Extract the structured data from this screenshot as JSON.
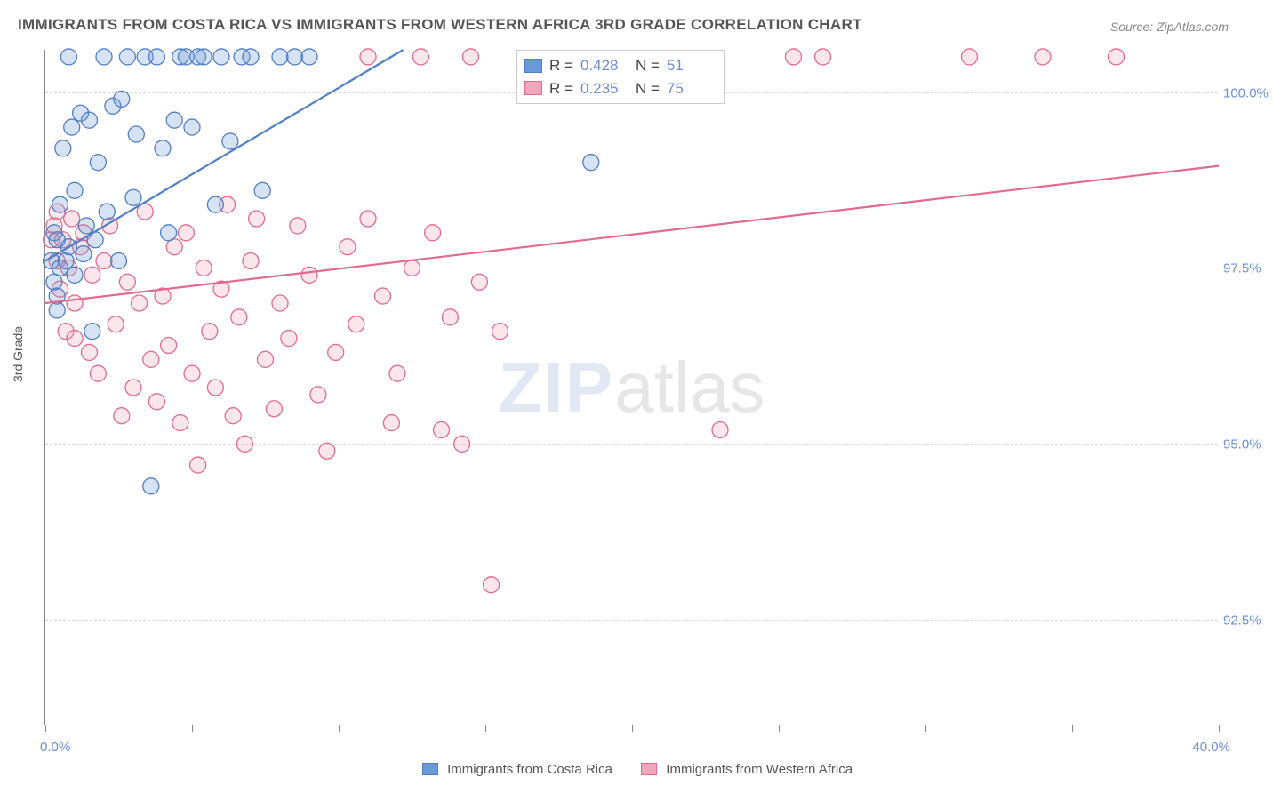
{
  "title": "IMMIGRANTS FROM COSTA RICA VS IMMIGRANTS FROM WESTERN AFRICA 3RD GRADE CORRELATION CHART",
  "source": "Source: ZipAtlas.com",
  "ylabel": "3rd Grade",
  "watermark": {
    "zip": "ZIP",
    "atlas": "atlas"
  },
  "chart": {
    "type": "scatter",
    "xlim": [
      0,
      40
    ],
    "ylim": [
      91.0,
      100.6
    ],
    "xticks": [
      0,
      5,
      10,
      15,
      20,
      25,
      30,
      35,
      40
    ],
    "xlabel_start": "0.0%",
    "xlabel_end": "40.0%",
    "yticks": [
      {
        "v": 100.0,
        "label": "100.0%"
      },
      {
        "v": 97.5,
        "label": "97.5%"
      },
      {
        "v": 95.0,
        "label": "95.0%"
      },
      {
        "v": 92.5,
        "label": "92.5%"
      }
    ],
    "background_color": "#ffffff",
    "grid_color": "#d8d8d8",
    "marker_radius": 9,
    "marker_fill_opacity": 0.28,
    "line_width": 2.2,
    "series": [
      {
        "name": "Immigrants from Costa Rica",
        "color": "#6a99d8",
        "stroke": "#4f7fc4",
        "R": "0.428",
        "N": "51",
        "trend": {
          "x1": 0,
          "y1": 97.6,
          "x2": 12.2,
          "y2": 100.6
        },
        "points": [
          [
            0.2,
            97.6
          ],
          [
            0.3,
            97.3
          ],
          [
            0.3,
            98.0
          ],
          [
            0.4,
            97.1
          ],
          [
            0.4,
            97.9
          ],
          [
            0.4,
            96.9
          ],
          [
            0.5,
            98.4
          ],
          [
            0.5,
            97.5
          ],
          [
            0.6,
            99.2
          ],
          [
            0.7,
            97.6
          ],
          [
            0.8,
            100.5
          ],
          [
            0.8,
            97.8
          ],
          [
            0.9,
            99.5
          ],
          [
            1.0,
            97.4
          ],
          [
            1.0,
            98.6
          ],
          [
            1.2,
            99.7
          ],
          [
            1.3,
            97.7
          ],
          [
            1.4,
            98.1
          ],
          [
            1.5,
            99.6
          ],
          [
            1.6,
            96.6
          ],
          [
            1.7,
            97.9
          ],
          [
            1.8,
            99.0
          ],
          [
            2.0,
            100.5
          ],
          [
            2.1,
            98.3
          ],
          [
            2.3,
            99.8
          ],
          [
            2.5,
            97.6
          ],
          [
            2.6,
            99.9
          ],
          [
            2.8,
            100.5
          ],
          [
            3.0,
            98.5
          ],
          [
            3.1,
            99.4
          ],
          [
            3.4,
            100.5
          ],
          [
            3.6,
            94.4
          ],
          [
            3.8,
            100.5
          ],
          [
            4.0,
            99.2
          ],
          [
            4.2,
            98.0
          ],
          [
            4.4,
            99.6
          ],
          [
            4.6,
            100.5
          ],
          [
            4.8,
            100.5
          ],
          [
            5.0,
            99.5
          ],
          [
            5.2,
            100.5
          ],
          [
            5.4,
            100.5
          ],
          [
            5.8,
            98.4
          ],
          [
            6.0,
            100.5
          ],
          [
            6.3,
            99.3
          ],
          [
            6.7,
            100.5
          ],
          [
            7.0,
            100.5
          ],
          [
            7.4,
            98.6
          ],
          [
            8.0,
            100.5
          ],
          [
            8.5,
            100.5
          ],
          [
            9.0,
            100.5
          ],
          [
            18.6,
            99.0
          ]
        ]
      },
      {
        "name": "Immigrants from Western Africa",
        "color": "#f2a6bb",
        "stroke": "#e26b8d",
        "R": "0.235",
        "N": "75",
        "trend": {
          "x1": 0,
          "y1": 97.0,
          "x2": 40,
          "y2": 98.95
        },
        "points": [
          [
            0.2,
            97.9
          ],
          [
            0.3,
            98.1
          ],
          [
            0.4,
            97.6
          ],
          [
            0.4,
            98.3
          ],
          [
            0.5,
            97.2
          ],
          [
            0.6,
            97.9
          ],
          [
            0.7,
            96.6
          ],
          [
            0.8,
            97.5
          ],
          [
            0.9,
            98.2
          ],
          [
            1.0,
            97.0
          ],
          [
            1.0,
            96.5
          ],
          [
            1.2,
            97.8
          ],
          [
            1.3,
            98.0
          ],
          [
            1.5,
            96.3
          ],
          [
            1.6,
            97.4
          ],
          [
            1.8,
            96.0
          ],
          [
            2.0,
            97.6
          ],
          [
            2.2,
            98.1
          ],
          [
            2.4,
            96.7
          ],
          [
            2.6,
            95.4
          ],
          [
            2.8,
            97.3
          ],
          [
            3.0,
            95.8
          ],
          [
            3.2,
            97.0
          ],
          [
            3.4,
            98.3
          ],
          [
            3.6,
            96.2
          ],
          [
            3.8,
            95.6
          ],
          [
            4.0,
            97.1
          ],
          [
            4.2,
            96.4
          ],
          [
            4.4,
            97.8
          ],
          [
            4.6,
            95.3
          ],
          [
            4.8,
            98.0
          ],
          [
            5.0,
            96.0
          ],
          [
            5.2,
            94.7
          ],
          [
            5.4,
            97.5
          ],
          [
            5.6,
            96.6
          ],
          [
            5.8,
            95.8
          ],
          [
            6.0,
            97.2
          ],
          [
            6.2,
            98.4
          ],
          [
            6.4,
            95.4
          ],
          [
            6.6,
            96.8
          ],
          [
            6.8,
            95.0
          ],
          [
            7.0,
            97.6
          ],
          [
            7.2,
            98.2
          ],
          [
            7.5,
            96.2
          ],
          [
            7.8,
            95.5
          ],
          [
            8.0,
            97.0
          ],
          [
            8.3,
            96.5
          ],
          [
            8.6,
            98.1
          ],
          [
            9.0,
            97.4
          ],
          [
            9.3,
            95.7
          ],
          [
            9.6,
            94.9
          ],
          [
            9.9,
            96.3
          ],
          [
            10.3,
            97.8
          ],
          [
            10.6,
            96.7
          ],
          [
            11.0,
            100.5
          ],
          [
            11.0,
            98.2
          ],
          [
            11.5,
            97.1
          ],
          [
            11.8,
            95.3
          ],
          [
            12.0,
            96.0
          ],
          [
            12.5,
            97.5
          ],
          [
            12.8,
            100.5
          ],
          [
            13.2,
            98.0
          ],
          [
            13.5,
            95.2
          ],
          [
            13.8,
            96.8
          ],
          [
            14.2,
            95.0
          ],
          [
            14.5,
            100.5
          ],
          [
            14.8,
            97.3
          ],
          [
            15.2,
            93.0
          ],
          [
            15.5,
            96.6
          ],
          [
            23.0,
            95.2
          ],
          [
            25.5,
            100.5
          ],
          [
            26.5,
            100.5
          ],
          [
            31.5,
            100.5
          ],
          [
            34.0,
            100.5
          ],
          [
            36.5,
            100.5
          ]
        ]
      }
    ]
  },
  "legend": {
    "label_R": "R =",
    "label_N": "N ="
  }
}
